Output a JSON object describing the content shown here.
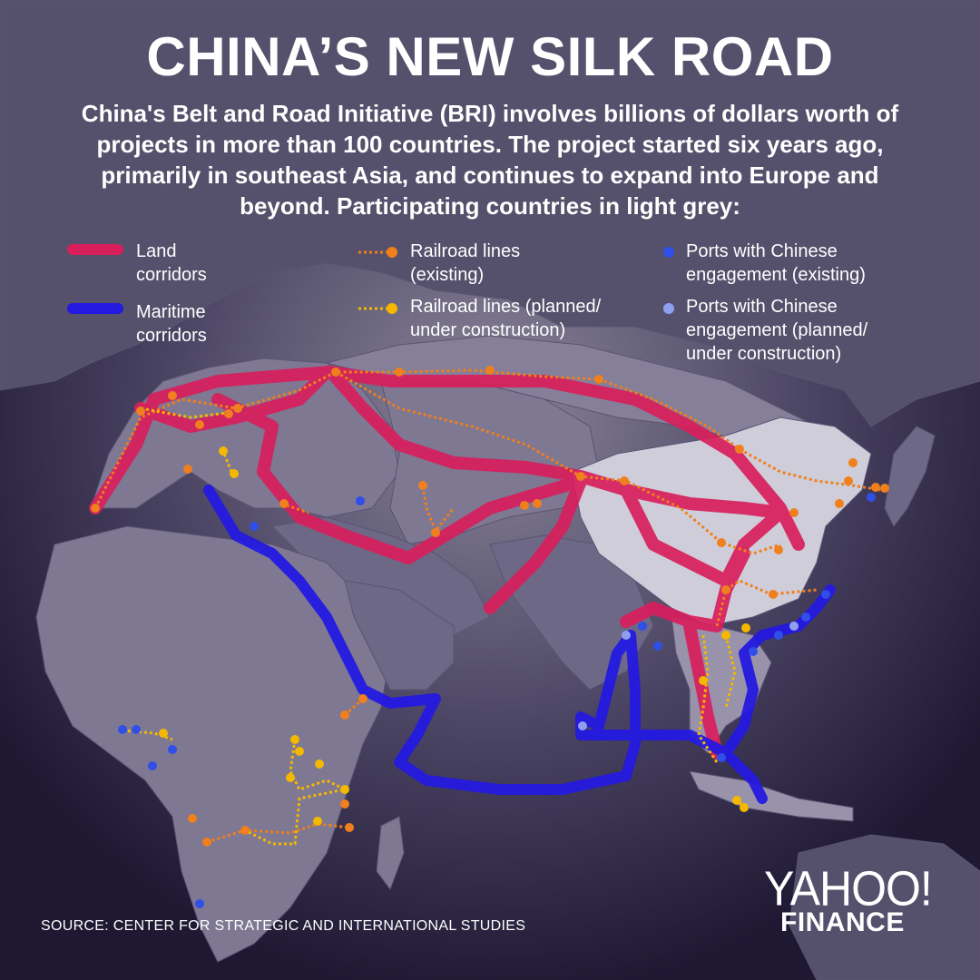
{
  "title": "CHINA’S NEW SILK ROAD",
  "subtitle": "China's Belt and Road Initiative (BRI) involves billions of dollars worth of projects in more than 100 countries. The project started six years ago, primarily in southeast Asia, and continues to expand into Europe and beyond. Participating countries in light grey:",
  "legend": {
    "land": "Land\ncorridors",
    "maritime": "Maritime\ncorridors",
    "rail_existing": "Railroad lines\n(existing)",
    "rail_planned": "Railroad lines (planned/\nunder construction)",
    "ports_existing": "Ports with Chinese\nengagement (existing)",
    "ports_planned": "Ports with Chinese\nengagement (planned/\nunder construction)"
  },
  "source": "SOURCE:  CENTER FOR STRATEGIC AND INTERNATIONAL STUDIES",
  "logo": {
    "yahoo": "YAHOO!",
    "finance": "FINANCE"
  },
  "colors": {
    "land_corridor": "#d81f5c",
    "maritime_corridor": "#2419e0",
    "rail_existing": "#f07f1d",
    "rail_planned": "#f5b800",
    "port_existing": "#2f4fe8",
    "port_planned": "#8f9ff0",
    "participating_country": "#7e7893",
    "china": "#cfcdd9",
    "background": "#1e1833"
  }
}
